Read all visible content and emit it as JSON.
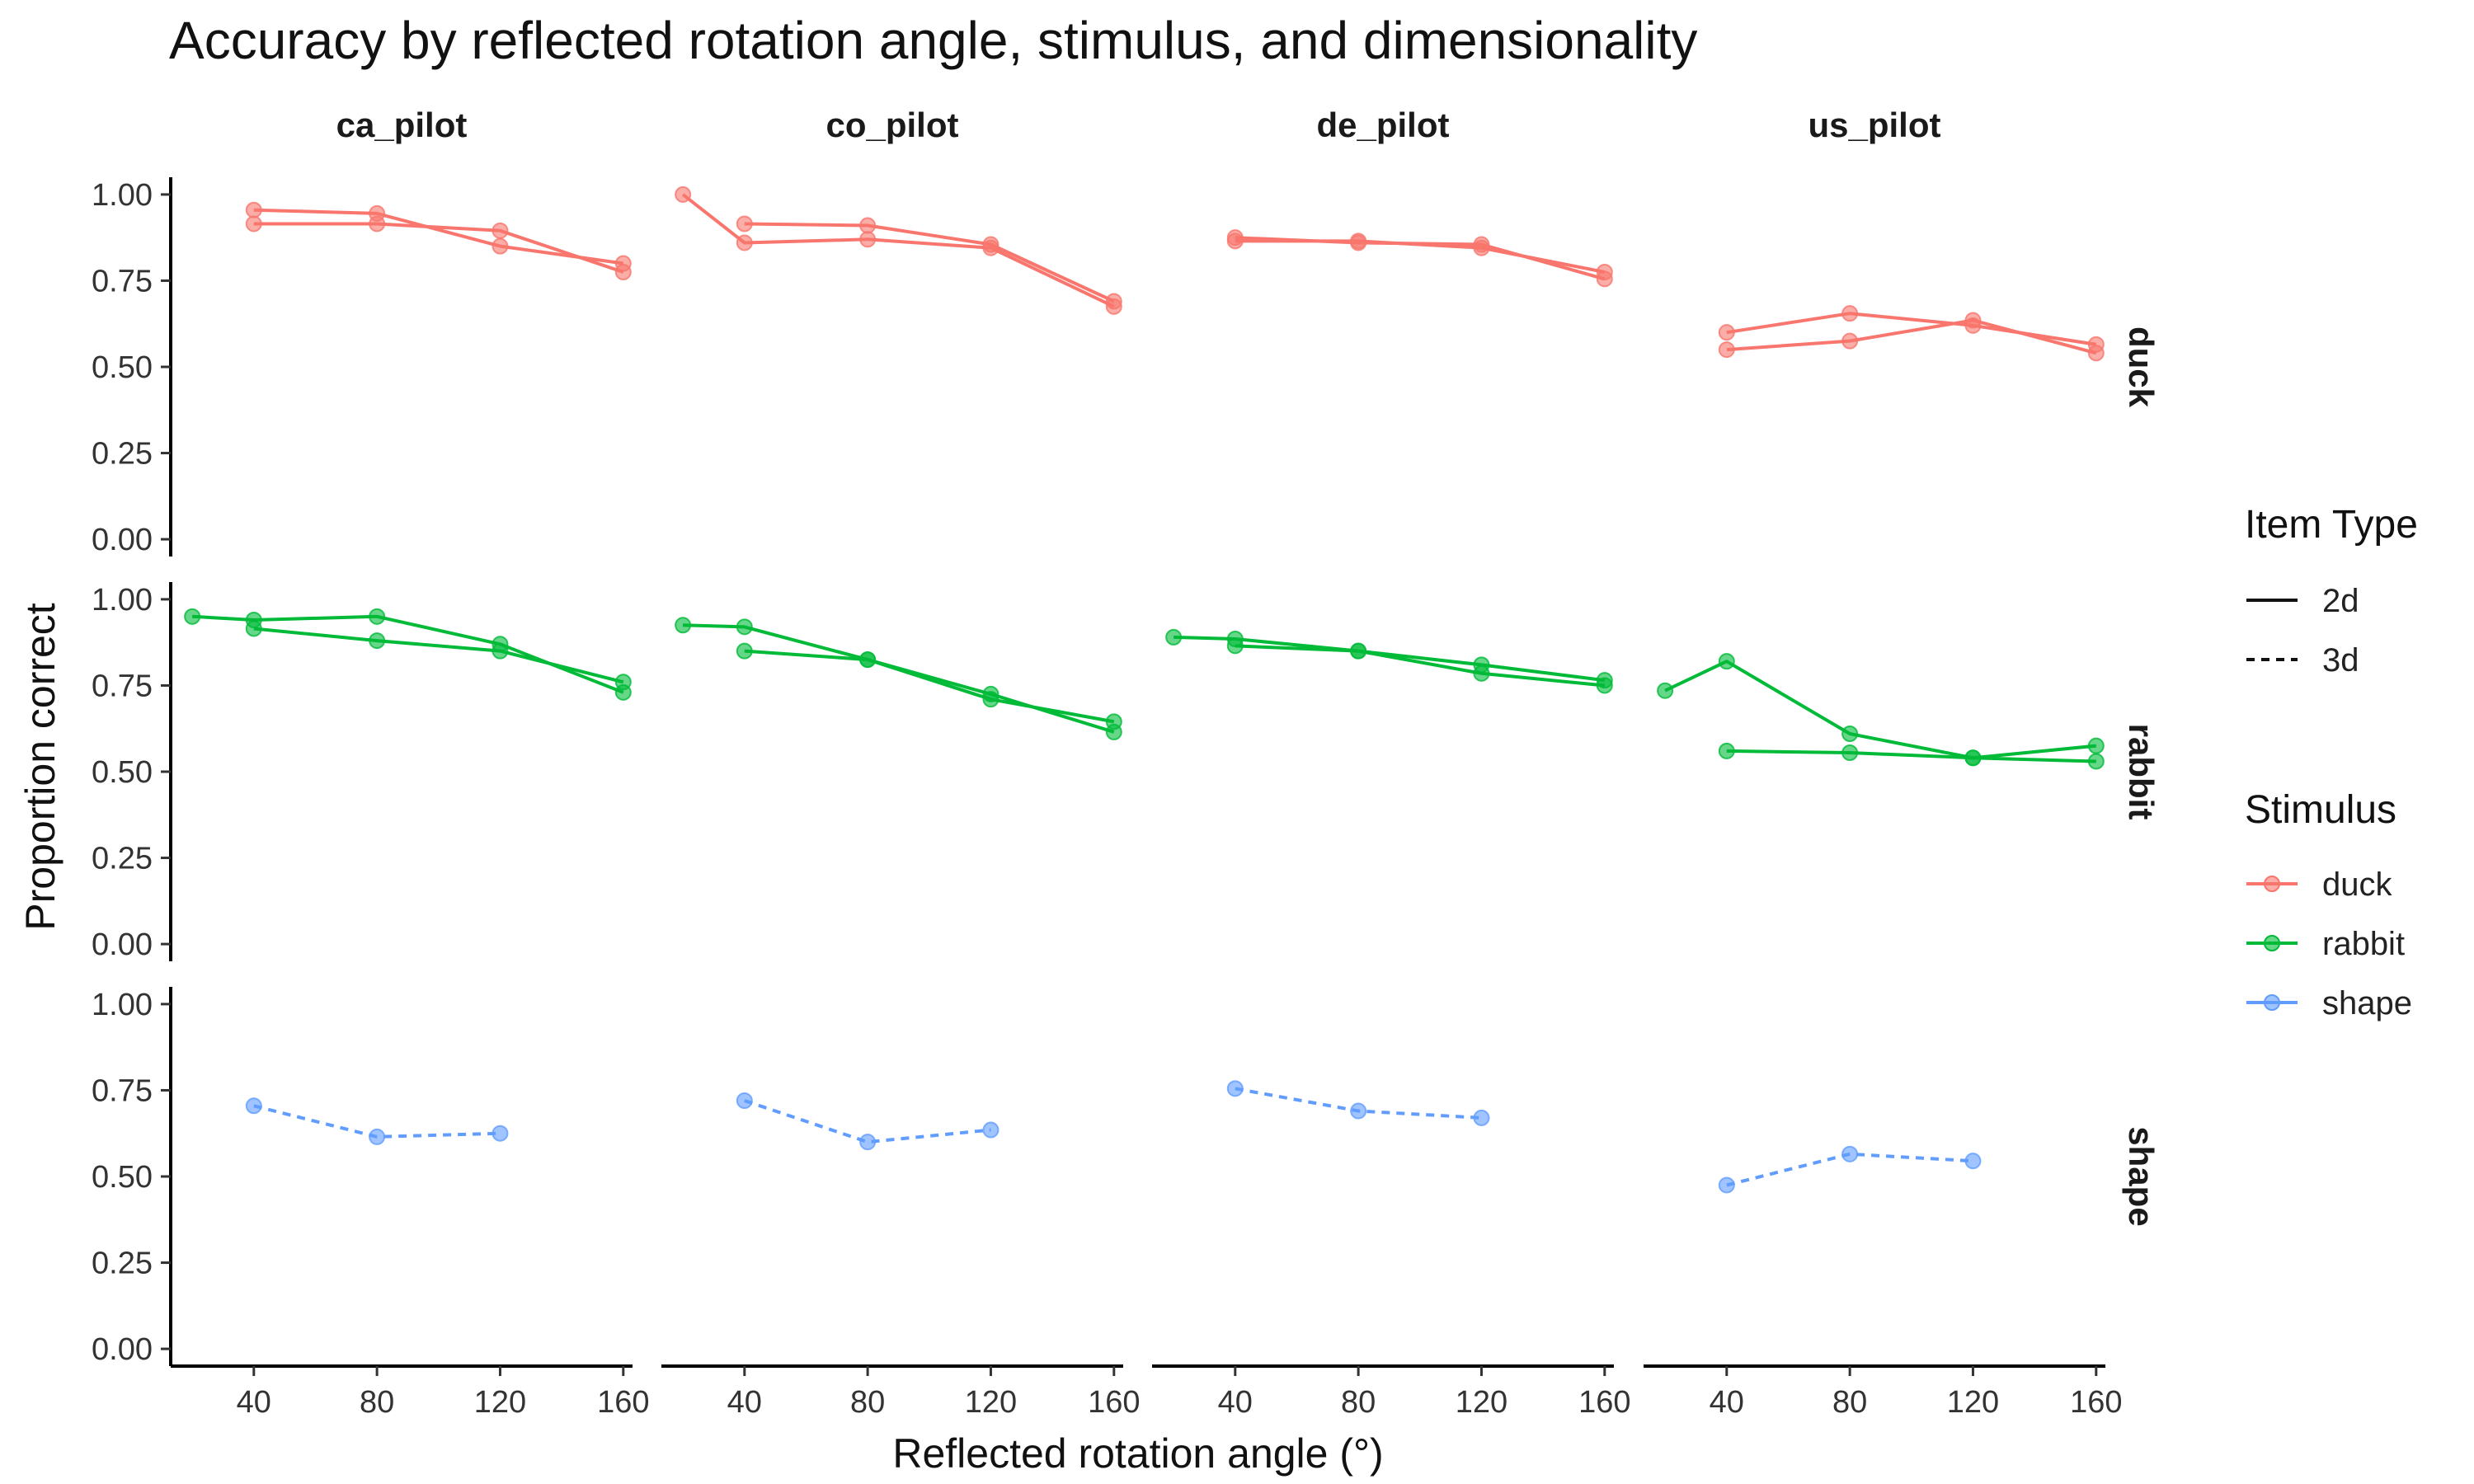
{
  "chart_data": {
    "type": "line",
    "title": "Accuracy by reflected rotation angle, stimulus, and dimensionality",
    "xlabel": "Reflected rotation angle (°)",
    "ylabel": "Proportion correct",
    "xlim": [
      13,
      163
    ],
    "ylim": [
      -0.05,
      1.05
    ],
    "x_ticks": [
      40,
      80,
      120,
      160
    ],
    "y_ticks": [
      0,
      0.25,
      0.5,
      0.75,
      1
    ],
    "y_tick_labels": [
      "0.00",
      "0.25",
      "0.50",
      "0.75",
      "1.00"
    ],
    "grid": false,
    "legend_position": "right",
    "facet_columns": [
      "ca_pilot",
      "co_pilot",
      "de_pilot",
      "us_pilot"
    ],
    "facet_rows": [
      "duck",
      "rabbit",
      "shape"
    ],
    "colors": {
      "duck": "#F8766D",
      "rabbit": "#00BA38",
      "shape": "#619CFF"
    },
    "legend": {
      "item_type": {
        "title": "Item Type",
        "entries": [
          "2d",
          "3d"
        ]
      },
      "stimulus": {
        "title": "Stimulus",
        "entries": [
          "duck",
          "rabbit",
          "shape"
        ]
      }
    },
    "series": [
      {
        "col": "ca_pilot",
        "row": "duck",
        "stimulus": "duck",
        "item_type": "2d",
        "x": [
          40,
          80,
          120,
          160
        ],
        "y": [
          0.955,
          0.945,
          0.85,
          0.8
        ]
      },
      {
        "col": "ca_pilot",
        "row": "duck",
        "stimulus": "duck",
        "item_type": "2d",
        "x": [
          40,
          80,
          120,
          160
        ],
        "y": [
          0.915,
          0.915,
          0.895,
          0.775
        ]
      },
      {
        "col": "co_pilot",
        "row": "duck",
        "stimulus": "duck",
        "item_type": "2d",
        "x": [
          20,
          40,
          80,
          120,
          160
        ],
        "y": [
          1.0,
          0.86,
          0.87,
          0.845,
          0.675
        ]
      },
      {
        "col": "co_pilot",
        "row": "duck",
        "stimulus": "duck",
        "item_type": "2d",
        "x": [
          40,
          80,
          120,
          160
        ],
        "y": [
          0.915,
          0.91,
          0.855,
          0.69
        ]
      },
      {
        "col": "de_pilot",
        "row": "duck",
        "stimulus": "duck",
        "item_type": "2d",
        "x": [
          40,
          80,
          120,
          160
        ],
        "y": [
          0.875,
          0.86,
          0.855,
          0.755
        ]
      },
      {
        "col": "de_pilot",
        "row": "duck",
        "stimulus": "duck",
        "item_type": "2d",
        "x": [
          40,
          80,
          120,
          160
        ],
        "y": [
          0.865,
          0.865,
          0.845,
          0.775
        ]
      },
      {
        "col": "us_pilot",
        "row": "duck",
        "stimulus": "duck",
        "item_type": "2d",
        "x": [
          40,
          80,
          120,
          160
        ],
        "y": [
          0.6,
          0.655,
          0.62,
          0.565
        ]
      },
      {
        "col": "us_pilot",
        "row": "duck",
        "stimulus": "duck",
        "item_type": "2d",
        "x": [
          40,
          80,
          120,
          160
        ],
        "y": [
          0.55,
          0.575,
          0.635,
          0.54
        ]
      },
      {
        "col": "ca_pilot",
        "row": "rabbit",
        "stimulus": "rabbit",
        "item_type": "2d",
        "x": [
          20,
          40,
          80,
          120,
          160
        ],
        "y": [
          0.95,
          0.94,
          0.95,
          0.87,
          0.73
        ]
      },
      {
        "col": "ca_pilot",
        "row": "rabbit",
        "stimulus": "rabbit",
        "item_type": "2d",
        "x": [
          40,
          80,
          120,
          160
        ],
        "y": [
          0.915,
          0.88,
          0.85,
          0.76
        ]
      },
      {
        "col": "co_pilot",
        "row": "rabbit",
        "stimulus": "rabbit",
        "item_type": "2d",
        "x": [
          20,
          40,
          80,
          120,
          160
        ],
        "y": [
          0.925,
          0.92,
          0.825,
          0.71,
          0.645
        ]
      },
      {
        "col": "co_pilot",
        "row": "rabbit",
        "stimulus": "rabbit",
        "item_type": "2d",
        "x": [
          40,
          80,
          120,
          160
        ],
        "y": [
          0.85,
          0.825,
          0.725,
          0.615
        ]
      },
      {
        "col": "de_pilot",
        "row": "rabbit",
        "stimulus": "rabbit",
        "item_type": "2d",
        "x": [
          20,
          40,
          80,
          120,
          160
        ],
        "y": [
          0.89,
          0.885,
          0.85,
          0.785,
          0.75
        ]
      },
      {
        "col": "de_pilot",
        "row": "rabbit",
        "stimulus": "rabbit",
        "item_type": "2d",
        "x": [
          40,
          80,
          120,
          160
        ],
        "y": [
          0.865,
          0.85,
          0.81,
          0.765
        ]
      },
      {
        "col": "us_pilot",
        "row": "rabbit",
        "stimulus": "rabbit",
        "item_type": "2d",
        "x": [
          20,
          40,
          80,
          120,
          160
        ],
        "y": [
          0.735,
          0.82,
          0.61,
          0.54,
          0.575
        ]
      },
      {
        "col": "us_pilot",
        "row": "rabbit",
        "stimulus": "rabbit",
        "item_type": "2d",
        "x": [
          40,
          80,
          120,
          160
        ],
        "y": [
          0.56,
          0.555,
          0.54,
          0.53
        ]
      },
      {
        "col": "ca_pilot",
        "row": "shape",
        "stimulus": "shape",
        "item_type": "3d",
        "x": [
          40,
          80,
          120
        ],
        "y": [
          0.705,
          0.615,
          0.625
        ]
      },
      {
        "col": "co_pilot",
        "row": "shape",
        "stimulus": "shape",
        "item_type": "3d",
        "x": [
          40,
          80,
          120
        ],
        "y": [
          0.72,
          0.6,
          0.635
        ]
      },
      {
        "col": "de_pilot",
        "row": "shape",
        "stimulus": "shape",
        "item_type": "3d",
        "x": [
          40,
          80,
          120
        ],
        "y": [
          0.755,
          0.69,
          0.67
        ]
      },
      {
        "col": "us_pilot",
        "row": "shape",
        "stimulus": "shape",
        "item_type": "3d",
        "x": [
          40,
          80,
          120
        ],
        "y": [
          0.475,
          0.565,
          0.545
        ]
      }
    ]
  }
}
